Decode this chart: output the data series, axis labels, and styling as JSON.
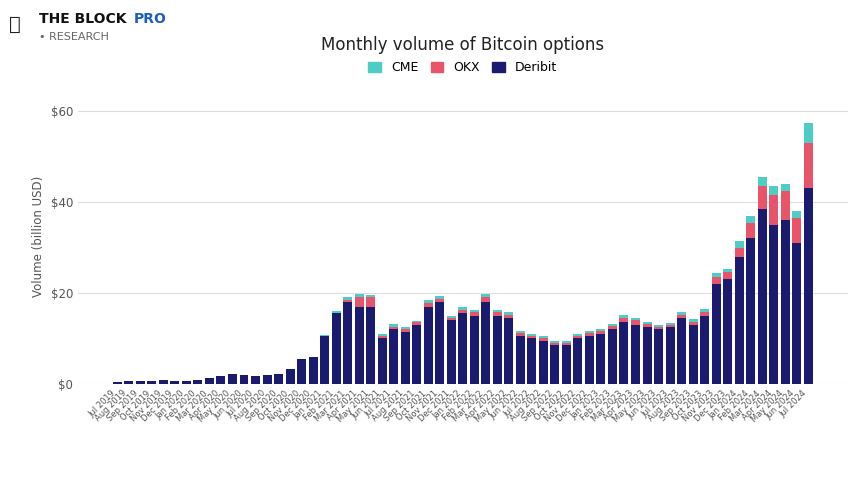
{
  "title": "Monthly volume of Bitcoin options",
  "ylabel": "Volume (billion USD)",
  "ylim": [
    0,
    65
  ],
  "yticks": [
    0,
    20,
    40,
    60
  ],
  "ytick_labels": [
    "$0",
    "$20",
    "$40",
    "$60"
  ],
  "colors": {
    "CME": "#4ecdc4",
    "OKX": "#e8546a",
    "Deribit": "#1a1a6e"
  },
  "background": "#ffffff",
  "grid_color": "#dddddd",
  "months": [
    "Jul 2019",
    "Aug 2019",
    "Sep 2019",
    "Oct 2019",
    "Nov 2019",
    "Dec 2019",
    "Jan 2020",
    "Feb 2020",
    "Mar 2020",
    "Apr 2020",
    "May 2020",
    "Jun 2020",
    "Jul 2020",
    "Aug 2020",
    "Sep 2020",
    "Oct 2020",
    "Nov 2020",
    "Dec 2020",
    "Jan 2021",
    "Feb 2021",
    "Mar 2021",
    "Apr 2021",
    "May 2021",
    "Jun 2021",
    "Jul 2021",
    "Aug 2021",
    "Sep 2021",
    "Oct 2021",
    "Nov 2021",
    "Dec 2021",
    "Jan 2022",
    "Feb 2022",
    "Mar 2022",
    "Apr 2022",
    "May 2022",
    "Jun 2022",
    "Jul 2022",
    "Aug 2022",
    "Sep 2022",
    "Oct 2022",
    "Nov 2022",
    "Dec 2022",
    "Jan 2023",
    "Feb 2023",
    "Mar 2023",
    "Apr 2023",
    "May 2023",
    "Jun 2023",
    "Jul 2023",
    "Aug 2023",
    "Sep 2023",
    "Oct 2023",
    "Nov 2023",
    "Dec 2023",
    "Jan 2024",
    "Feb 2024",
    "Mar 2024",
    "Apr 2024",
    "May 2024",
    "Jun 2024",
    "Jul 2024"
  ],
  "deribit": [
    0.3,
    0.5,
    0.5,
    0.6,
    0.8,
    0.5,
    0.7,
    0.8,
    1.2,
    1.8,
    2.2,
    2.0,
    1.8,
    2.0,
    2.2,
    3.2,
    5.5,
    6.0,
    10.5,
    15.5,
    18.0,
    17.0,
    17.0,
    10.0,
    12.0,
    11.5,
    13.0,
    17.0,
    18.0,
    14.0,
    15.5,
    15.0,
    18.0,
    15.0,
    14.5,
    10.5,
    10.0,
    9.5,
    8.5,
    8.5,
    10.0,
    10.5,
    11.0,
    12.0,
    13.5,
    13.0,
    12.5,
    12.0,
    12.5,
    14.5,
    13.0,
    15.0,
    22.0,
    23.0,
    28.0,
    32.0,
    38.5,
    35.0,
    36.0,
    31.0,
    43.0
  ],
  "okx": [
    0.0,
    0.0,
    0.0,
    0.0,
    0.0,
    0.0,
    0.0,
    0.0,
    0.0,
    0.0,
    0.0,
    0.0,
    0.0,
    0.0,
    0.0,
    0.0,
    0.0,
    0.0,
    0.0,
    0.0,
    0.5,
    2.0,
    2.0,
    0.5,
    0.5,
    0.5,
    0.5,
    0.8,
    0.7,
    0.5,
    0.8,
    0.7,
    1.0,
    0.7,
    0.7,
    0.7,
    0.6,
    0.6,
    0.5,
    0.5,
    0.5,
    0.7,
    0.7,
    0.7,
    1.0,
    1.0,
    0.7,
    0.5,
    0.5,
    0.7,
    0.7,
    0.8,
    1.5,
    1.5,
    2.0,
    3.5,
    5.0,
    6.5,
    6.5,
    5.5,
    10.0
  ],
  "cme": [
    0.0,
    0.0,
    0.0,
    0.0,
    0.0,
    0.0,
    0.0,
    0.0,
    0.0,
    0.0,
    0.0,
    0.0,
    0.0,
    0.0,
    0.0,
    0.0,
    0.0,
    0.0,
    0.3,
    0.5,
    0.7,
    0.7,
    0.6,
    0.4,
    0.6,
    0.5,
    0.4,
    0.7,
    0.7,
    0.5,
    0.7,
    0.6,
    0.7,
    0.6,
    0.5,
    0.4,
    0.4,
    0.4,
    0.4,
    0.4,
    0.4,
    0.4,
    0.4,
    0.4,
    0.6,
    0.4,
    0.4,
    0.4,
    0.4,
    0.7,
    0.6,
    0.7,
    0.8,
    0.8,
    1.5,
    1.5,
    2.0,
    2.0,
    1.5,
    1.5,
    4.5
  ],
  "pro_color": "#1a5fbd",
  "logo_box_color": "#222222"
}
